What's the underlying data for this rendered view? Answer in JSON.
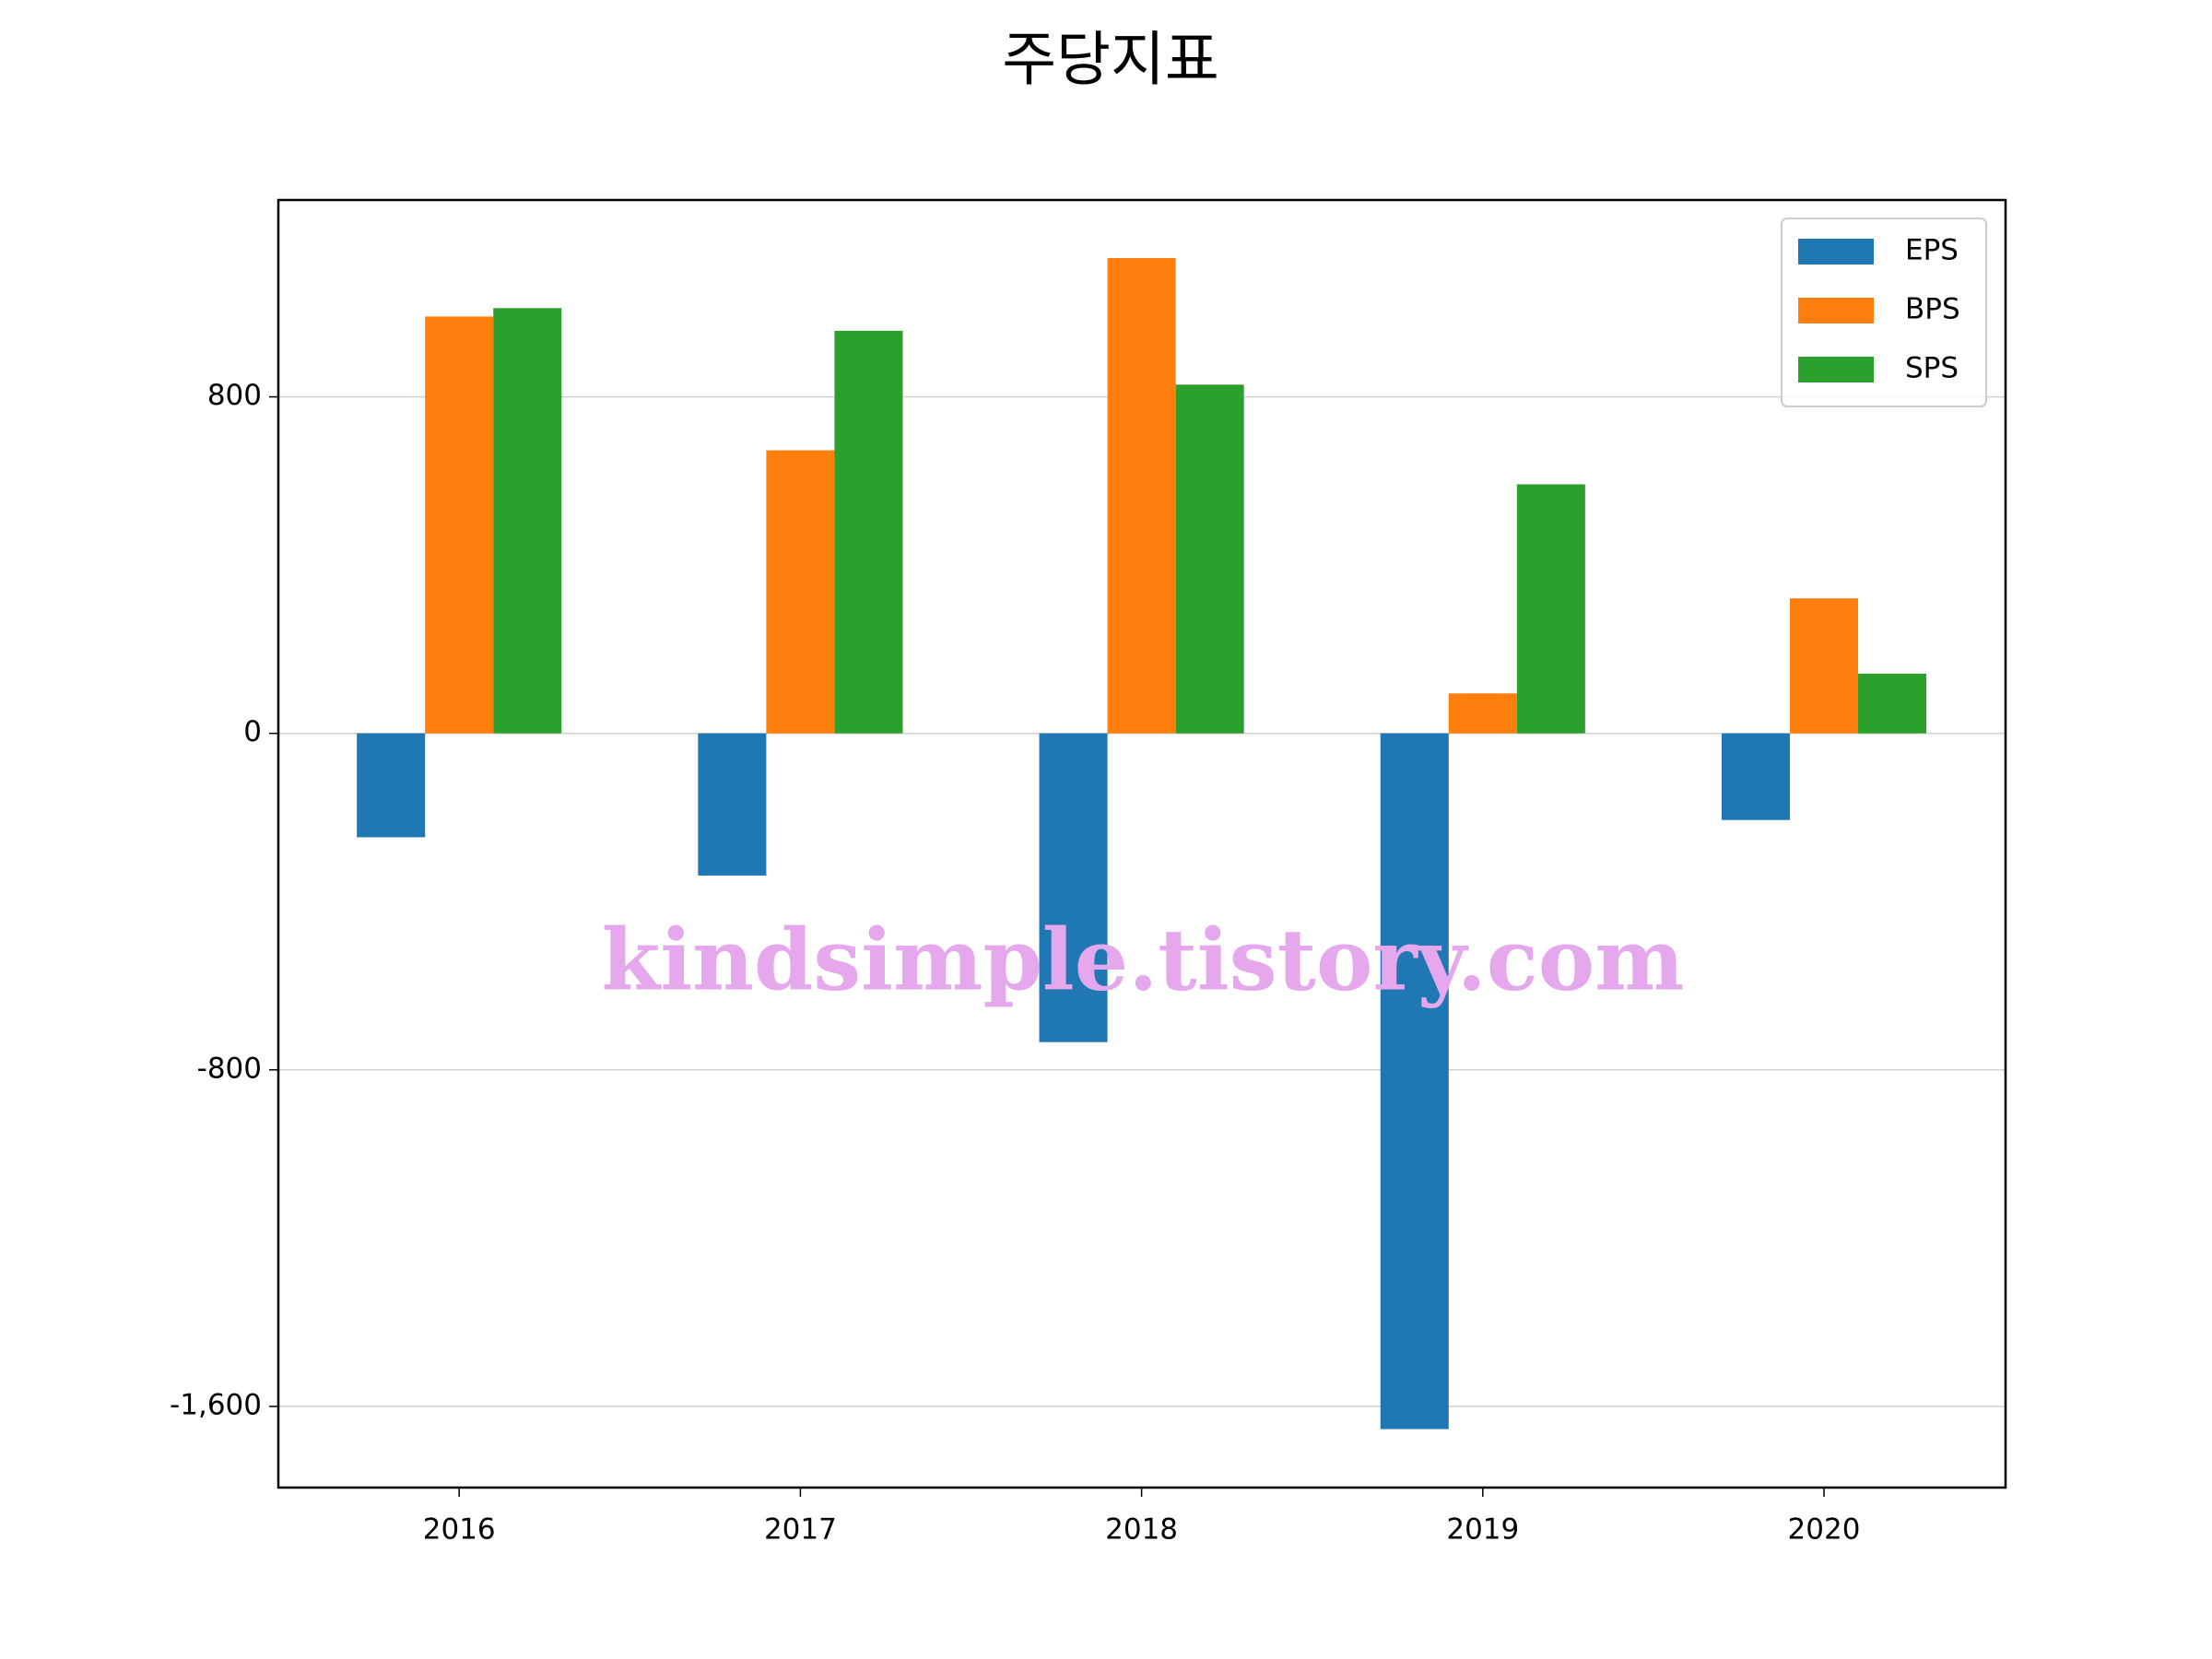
{
  "chart_data": {
    "type": "bar",
    "title": "주당지표",
    "categories": [
      "2016",
      "2017",
      "2018",
      "2019",
      "2020"
    ],
    "series": [
      {
        "name": "EPS",
        "color": "#1f77b4",
        "values": [
          -247,
          -338,
          -734,
          -1654,
          -206
        ]
      },
      {
        "name": "BPS",
        "color": "#ff7f0e",
        "values": [
          991,
          673,
          1130,
          95,
          321
        ]
      },
      {
        "name": "SPS",
        "color": "#2ca02c",
        "values": [
          1011,
          957,
          829,
          592,
          142
        ]
      }
    ],
    "ylim": [
      -1793,
      1268
    ],
    "yticks": [
      {
        "value": -1600,
        "label": "-1,600"
      },
      -800,
      0,
      800
    ],
    "grid": true,
    "legend": "upper right",
    "annotation": "kindsimple.tistory.com"
  }
}
